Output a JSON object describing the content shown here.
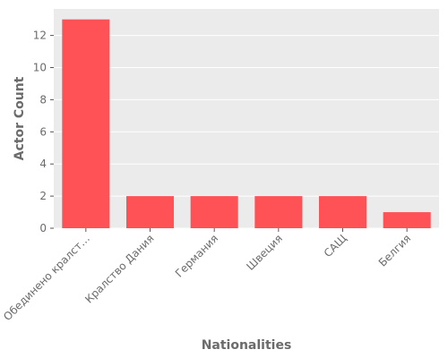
{
  "chart_data": {
    "type": "bar",
    "title": "",
    "xlabel": "Nationalities",
    "ylabel": "Actor Count",
    "categories": [
      "Обединено кралст…",
      "Кралство Дания",
      "Германия",
      "Швеция",
      "САЩ",
      "Белгия"
    ],
    "values": [
      13,
      2,
      2,
      2,
      2,
      1
    ],
    "ylim": [
      0,
      13.65
    ],
    "yticks": [
      0,
      2,
      4,
      6,
      8,
      10,
      12
    ],
    "grid": true,
    "legend": "none",
    "colors": {
      "bar": "#ff5257",
      "plot_background": "#ebebeb",
      "grid": "#ffffff",
      "text": "#6b6b6b"
    }
  }
}
